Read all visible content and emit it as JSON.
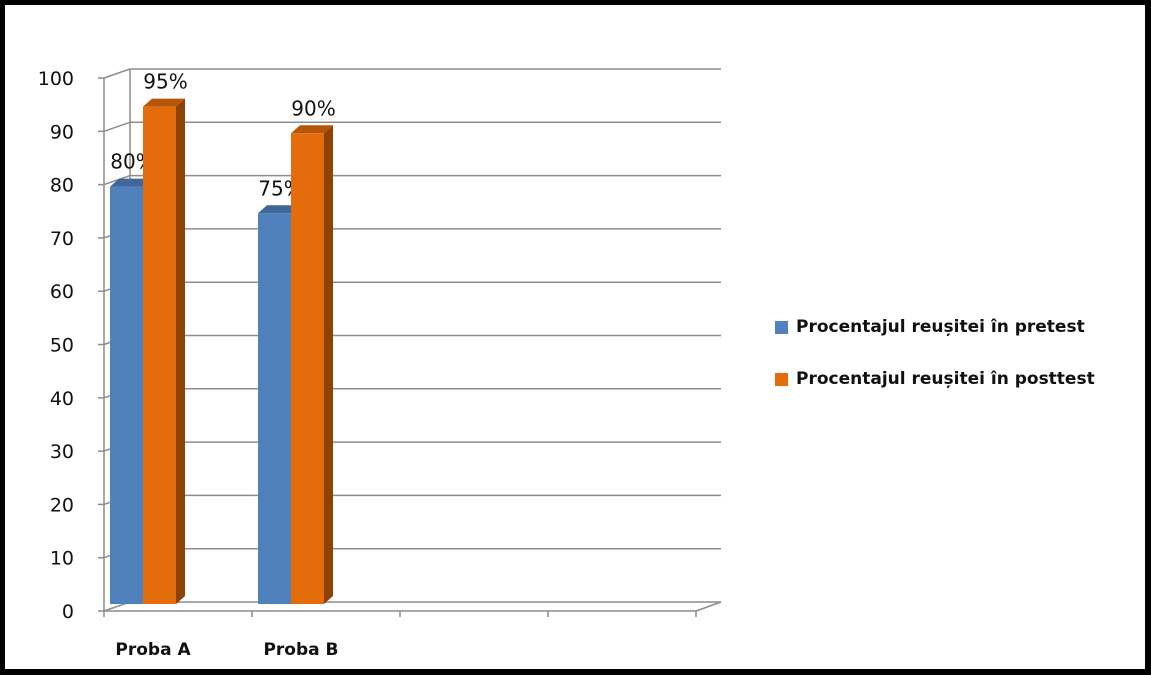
{
  "chart_data": {
    "type": "bar",
    "categories": [
      "Proba A",
      "Proba B",
      "",
      ""
    ],
    "series": [
      {
        "name": "Procentajul reușitei în pretest",
        "values": [
          80,
          75,
          null,
          null
        ],
        "labels": [
          "80%",
          "75%",
          "",
          ""
        ],
        "color": "#4F81BD"
      },
      {
        "name": "Procentajul reușitei în posttest",
        "values": [
          95,
          90,
          null,
          null
        ],
        "labels": [
          "95%",
          "90%",
          "",
          ""
        ],
        "color": "#E46C0A"
      }
    ],
    "ylim": [
      0,
      100
    ],
    "yticks": [
      0,
      10,
      20,
      30,
      40,
      50,
      60,
      70,
      80,
      90,
      100
    ],
    "grid": true,
    "three_d": true,
    "legend_position": "right"
  }
}
